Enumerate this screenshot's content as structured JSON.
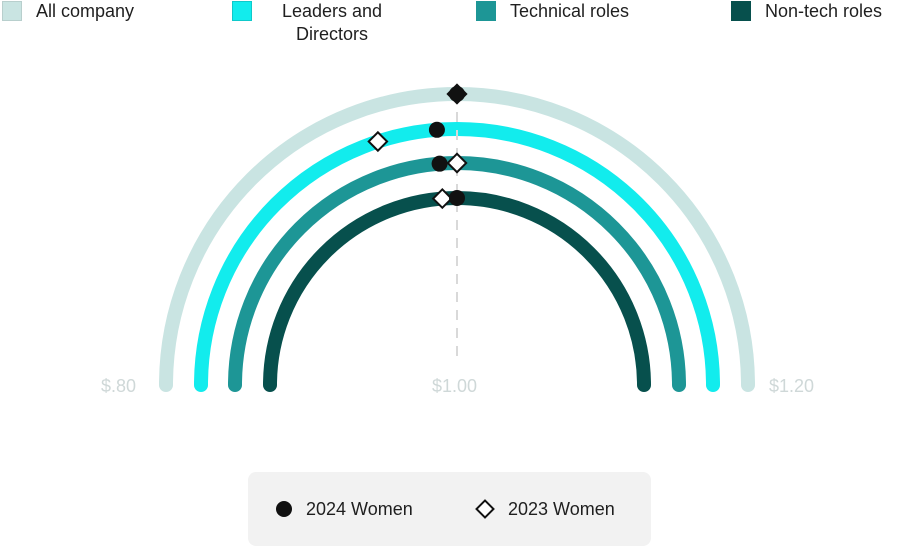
{
  "legend": [
    {
      "label": "All company",
      "color": "#c9e4e2"
    },
    {
      "label": "Leaders and Directors",
      "color": "#12eced"
    },
    {
      "label": "Technical roles",
      "color": "#1d9696"
    },
    {
      "label": "Non-tech roles",
      "color": "#07504d"
    }
  ],
  "key": {
    "women_2024": "2024 Women",
    "women_2023": "2023 Women"
  },
  "chart_data": {
    "type": "radial_semicircle",
    "axis": {
      "min": 0.8,
      "max": 1.2,
      "ticks": [
        "$.80",
        "$1.00",
        "$1.20"
      ],
      "reference_line": 1.0
    },
    "series": [
      {
        "name": "All company",
        "color": "#c9e4e2",
        "women_2024": 1.0,
        "women_2023": 1.0
      },
      {
        "name": "Leaders and Directors",
        "color": "#12eced",
        "women_2024": 0.99,
        "women_2023": 0.96
      },
      {
        "name": "Technical roles",
        "color": "#1d9696",
        "women_2024": 0.99,
        "women_2023": 1.0
      },
      {
        "name": "Non-tech roles",
        "color": "#07504d",
        "women_2024": 1.0,
        "women_2023": 0.99
      }
    ]
  }
}
